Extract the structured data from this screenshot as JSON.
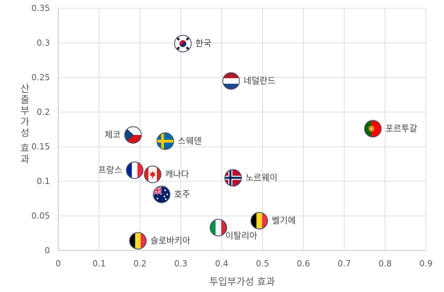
{
  "chart_data": {
    "type": "scatter",
    "title": "",
    "xlabel": "투입부가성 효과",
    "ylabel": "산출부가성 효과",
    "xlim": [
      0,
      0.9
    ],
    "ylim": [
      0,
      0.35
    ],
    "xticks": [
      0,
      0.1,
      0.2,
      0.3,
      0.4,
      0.5,
      0.6,
      0.7,
      0.8,
      0.9
    ],
    "yticks": [
      0,
      0.05,
      0.1,
      0.15,
      0.2,
      0.25,
      0.3,
      0.35
    ],
    "xtick_labels": [
      "0",
      "0.1",
      "0.2",
      "0.3",
      "0.4",
      "0.5",
      "0.6",
      "0.7",
      "0.8",
      "0.9"
    ],
    "ytick_labels": [
      "0",
      "0.05",
      "0.1",
      "0.15",
      "0.2",
      "0.25",
      "0.3",
      "0.35"
    ],
    "grid": true,
    "legend": "none",
    "points": [
      {
        "label": "한국",
        "x": 0.305,
        "y": 0.299,
        "flag": "korea",
        "label_pos": "right"
      },
      {
        "label": "네덜란드",
        "x": 0.423,
        "y": 0.245,
        "flag": "netherlands",
        "label_pos": "right"
      },
      {
        "label": "포르투갈",
        "x": 0.77,
        "y": 0.176,
        "flag": "portugal",
        "label_pos": "right"
      },
      {
        "label": "체코",
        "x": 0.183,
        "y": 0.167,
        "flag": "czech",
        "label_pos": "left"
      },
      {
        "label": "스웨덴",
        "x": 0.262,
        "y": 0.158,
        "flag": "sweden",
        "label_pos": "right"
      },
      {
        "label": "프랑스",
        "x": 0.187,
        "y": 0.116,
        "flag": "france",
        "label_pos": "left"
      },
      {
        "label": "캐나다",
        "x": 0.231,
        "y": 0.11,
        "flag": "canada",
        "label_pos": "right"
      },
      {
        "label": "노르웨이",
        "x": 0.428,
        "y": 0.105,
        "flag": "norway",
        "label_pos": "right"
      },
      {
        "label": "호주",
        "x": 0.253,
        "y": 0.081,
        "flag": "australia",
        "label_pos": "right"
      },
      {
        "label": "벨기에",
        "x": 0.492,
        "y": 0.043,
        "flag": "belgium",
        "label_pos": "right"
      },
      {
        "label": "이탈리아",
        "x": 0.392,
        "y": 0.033,
        "flag": "italy",
        "label_pos": "below-right"
      },
      {
        "label": "슬로바키아",
        "x": 0.195,
        "y": 0.014,
        "flag": "belgium",
        "label_pos": "right"
      }
    ],
    "colors": {
      "grid": "#d9d9d9",
      "axis": "#bfbfbf",
      "tick_text": "#595959",
      "label_text": "#404040"
    }
  }
}
